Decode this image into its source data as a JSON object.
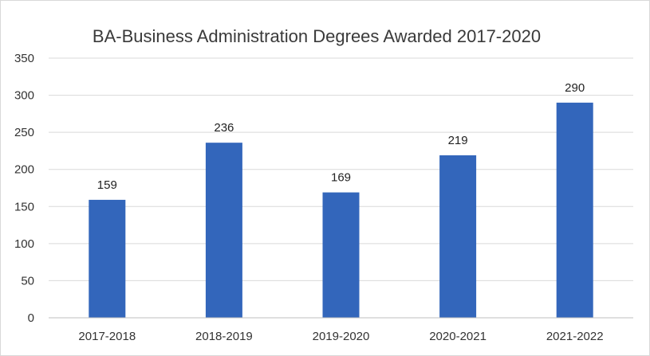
{
  "chart_data": {
    "type": "bar",
    "title": "BA-Business Administration Degrees Awarded 2017-2020",
    "xlabel": "",
    "ylabel": "",
    "categories": [
      "2017-2018",
      "2018-2019",
      "2019-2020",
      "2020-2021",
      "2021-2022"
    ],
    "series": [
      {
        "values": [
          159,
          236,
          169,
          219,
          290
        ],
        "color": "#3366bb"
      }
    ],
    "ylim": [
      0,
      350
    ],
    "yticks": [
      0,
      50,
      100,
      150,
      200,
      250,
      300,
      350
    ],
    "grid": true,
    "legend": "none",
    "data_labels": true
  }
}
